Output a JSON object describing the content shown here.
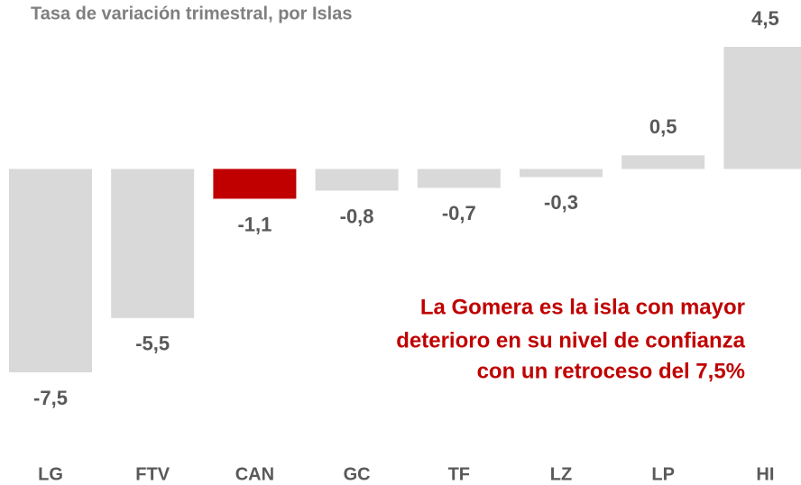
{
  "chart_data": {
    "type": "bar",
    "title": "Tasa de variación trimestral, por Islas",
    "categories": [
      "LG",
      "FTV",
      "CAN",
      "GC",
      "TF",
      "LZ",
      "LP",
      "HI"
    ],
    "values": [
      -7.5,
      -5.5,
      -1.1,
      -0.8,
      -0.7,
      -0.3,
      0.5,
      4.5
    ],
    "value_labels": [
      "-7,5",
      "-5,5",
      "-1,1",
      "-0,8",
      "-0,7",
      "-0,3",
      "0,5",
      "4,5"
    ],
    "colors": [
      "#d9d9d9",
      "#d9d9d9",
      "#c00000",
      "#d9d9d9",
      "#d9d9d9",
      "#d9d9d9",
      "#d9d9d9",
      "#d9d9d9"
    ],
    "annotation": [
      "La Gomera es la isla con mayor",
      "deterioro en su nivel de confianza",
      "con un retroceso del 7,5%"
    ]
  }
}
